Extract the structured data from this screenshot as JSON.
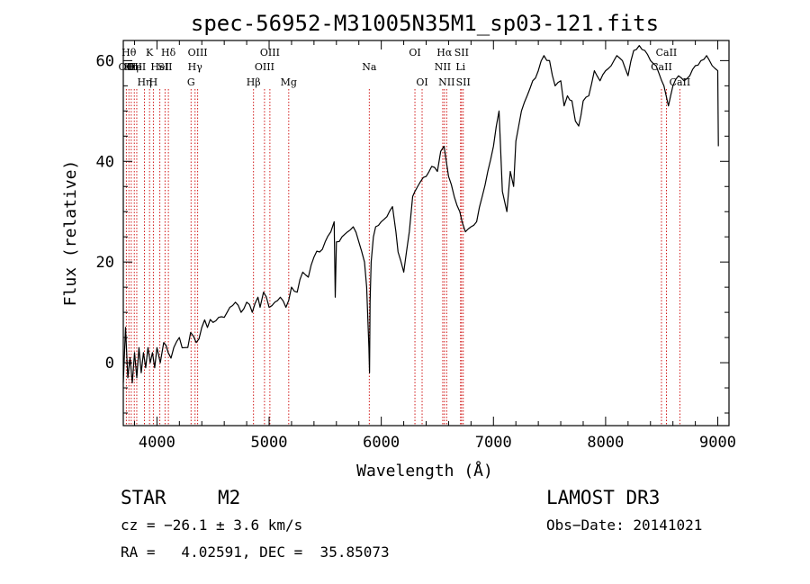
{
  "chart_data": {
    "type": "line",
    "title": "spec-56952-M31005N35M1_sp03-121.fits",
    "xlabel": "Wavelength (Å)",
    "ylabel": "Flux (relative)",
    "xlim": [
      3700,
      9100
    ],
    "ylim": [
      -12.5,
      64
    ],
    "xticks": [
      4000,
      5000,
      6000,
      7000,
      8000,
      9000
    ],
    "yticks": [
      0,
      20,
      40,
      60
    ],
    "grid": false,
    "colors": {
      "line": "#000000",
      "marker": "#cc0000",
      "axes": "#000000"
    },
    "series": [
      {
        "name": "flux",
        "x": [
          3700,
          3720,
          3740,
          3760,
          3780,
          3800,
          3820,
          3840,
          3860,
          3880,
          3900,
          3920,
          3940,
          3960,
          3980,
          4000,
          4030,
          4060,
          4100,
          4150,
          4200,
          4250,
          4300,
          4350,
          4400,
          4450,
          4500,
          4550,
          4600,
          4650,
          4700,
          4750,
          4800,
          4850,
          4900,
          4920,
          4950,
          5000,
          5050,
          5100,
          5150,
          5200,
          5250,
          5300,
          5350,
          5400,
          5450,
          5500,
          5550,
          5580,
          5590,
          5600,
          5650,
          5700,
          5750,
          5800,
          5850,
          5870,
          5890,
          5895,
          5900,
          5910,
          5930,
          5950,
          6000,
          6050,
          6100,
          6130,
          6150,
          6200,
          6250,
          6280,
          6300,
          6350,
          6400,
          6450,
          6500,
          6530,
          6560,
          6580,
          6600,
          6650,
          6700,
          6720,
          6750,
          6800,
          6850,
          6900,
          6950,
          7000,
          7050,
          7080,
          7100,
          7120,
          7150,
          7180,
          7200,
          7250,
          7300,
          7350,
          7400,
          7450,
          7500,
          7550,
          7600,
          7630,
          7660,
          7700,
          7730,
          7760,
          7800,
          7850,
          7900,
          7950,
          8000,
          8050,
          8100,
          8150,
          8200,
          8250,
          8300,
          8350,
          8400,
          8450,
          8500,
          8520,
          8540,
          8560,
          8600,
          8650,
          8700,
          8750,
          8800,
          8850,
          8900,
          8950,
          9000,
          9005
        ],
        "y": [
          -4,
          7,
          -3,
          1,
          -4,
          2,
          -3,
          3,
          -2,
          2,
          -1,
          3,
          0,
          2,
          -1,
          3,
          0,
          4,
          2,
          3,
          5,
          3,
          6,
          4,
          7,
          7,
          8,
          9,
          9,
          11,
          12,
          10,
          12,
          10,
          13,
          11,
          14,
          11,
          12,
          13,
          11,
          15,
          14,
          18,
          17,
          21,
          22,
          24,
          26,
          28,
          13,
          24,
          25,
          26,
          27,
          24,
          20,
          15,
          3,
          -2,
          12,
          20,
          25,
          27,
          28,
          29,
          31,
          26,
          22,
          18,
          26,
          33,
          34,
          36,
          37,
          39,
          38,
          42,
          43,
          40,
          37,
          33,
          30,
          28,
          26,
          27,
          28,
          33,
          38,
          43,
          50,
          34,
          32,
          30,
          38,
          35,
          44,
          50,
          53,
          56,
          58,
          61,
          60,
          55,
          56,
          51,
          53,
          52,
          48,
          47,
          52,
          53,
          58,
          56,
          58,
          59,
          61,
          60,
          57,
          62,
          63,
          62,
          60,
          59,
          56,
          55,
          53,
          51,
          55,
          57,
          56,
          57,
          59,
          60,
          61,
          59,
          58,
          43
        ]
      }
    ],
    "line_markers": [
      {
        "wavelength": 3727,
        "label": "OII",
        "row": 2
      },
      {
        "wavelength": 3750,
        "label": "Hθ",
        "row": 1
      },
      {
        "wavelength": 3771,
        "label": "Hη",
        "row": 2
      },
      {
        "wavelength": 3798,
        "label": "OII",
        "row": 2
      },
      {
        "wavelength": 3820,
        "label": "HeI",
        "row": 2
      },
      {
        "wavelength": 3889,
        "label": "Hη",
        "row": 3
      },
      {
        "wavelength": 3934,
        "label": "K",
        "row": 1
      },
      {
        "wavelength": 3968,
        "label": "H",
        "row": 3
      },
      {
        "wavelength": 4026,
        "label": "HeI",
        "row": 2
      },
      {
        "wavelength": 4072,
        "label": "SII",
        "row": 2
      },
      {
        "wavelength": 4102,
        "label": "Hδ",
        "row": 1
      },
      {
        "wavelength": 4304,
        "label": "G",
        "row": 3
      },
      {
        "wavelength": 4340,
        "label": "Hγ",
        "row": 2
      },
      {
        "wavelength": 4363,
        "label": "OIII",
        "row": 1
      },
      {
        "wavelength": 4861,
        "label": "Hβ",
        "row": 3
      },
      {
        "wavelength": 4959,
        "label": "OIII",
        "row": 2
      },
      {
        "wavelength": 5007,
        "label": "OIII",
        "row": 1
      },
      {
        "wavelength": 5175,
        "label": "Mg",
        "row": 3
      },
      {
        "wavelength": 5893,
        "label": "Na",
        "row": 2
      },
      {
        "wavelength": 6300,
        "label": "OI",
        "row": 1
      },
      {
        "wavelength": 6364,
        "label": "OI",
        "row": 3
      },
      {
        "wavelength": 6548,
        "label": "NII",
        "row": 2
      },
      {
        "wavelength": 6563,
        "label": "Hα",
        "row": 1
      },
      {
        "wavelength": 6583,
        "label": "NII",
        "row": 3
      },
      {
        "wavelength": 6707,
        "label": "Li",
        "row": 2
      },
      {
        "wavelength": 6716,
        "label": "SII",
        "row": 1
      },
      {
        "wavelength": 6731,
        "label": "SII",
        "row": 3
      },
      {
        "wavelength": 8498,
        "label": "CaII",
        "row": 2
      },
      {
        "wavelength": 8542,
        "label": "CaII",
        "row": 1
      },
      {
        "wavelength": 8662,
        "label": "CaII",
        "row": 3
      }
    ]
  },
  "info": {
    "class_label": "STAR",
    "subclass": "M2",
    "survey": "LAMOST DR3",
    "cz": "cz = −26.1 ± 3.6 km/s",
    "obs_date": "Obs−Date: 20141021",
    "coords": "RA =   4.02591, DEC =  35.85073"
  }
}
